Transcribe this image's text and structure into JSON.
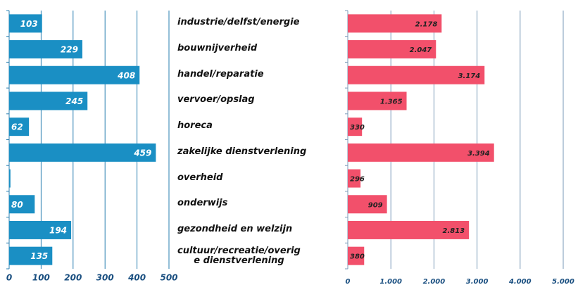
{
  "chart_data": {
    "type": "bar",
    "orientation": "horizontal",
    "categories": [
      "industrie/delfst/energie",
      "bouwnijverheid",
      "handel/reparatie",
      "vervoer/opslag",
      "horeca",
      "zakelijke dienstverlening",
      "overheid",
      "onderwijs",
      "gezondheid en welzijn",
      "cultuur/recreatie/overig\ne dienstverlening"
    ],
    "series": [
      {
        "color": "#1a8fc4",
        "values": [
          103,
          229,
          408,
          245,
          62,
          459,
          4,
          80,
          194,
          135
        ],
        "xlim": [
          0,
          500
        ],
        "xticks": [
          0,
          100,
          200,
          300,
          400,
          500
        ]
      },
      {
        "color": "#f2506b",
        "values": [
          2178,
          2047,
          3174,
          1365,
          330,
          3394,
          296,
          909,
          2813,
          380
        ],
        "value_labels": [
          "2.178",
          "2.047",
          "3.174",
          "1.365",
          "330",
          "3.394",
          "296",
          "909",
          "2.813",
          "380"
        ],
        "xlim": [
          0,
          5000
        ],
        "xticks": [
          0,
          {
            "value": 1000,
            "label": "1.000"
          },
          {
            "value": 2000,
            "label": "2.000"
          },
          {
            "value": 3000,
            "label": "3.000"
          },
          {
            "value": 4000,
            "label": "4.000"
          },
          {
            "value": 5000,
            "label": "5.000"
          }
        ]
      }
    ],
    "grid": true
  }
}
